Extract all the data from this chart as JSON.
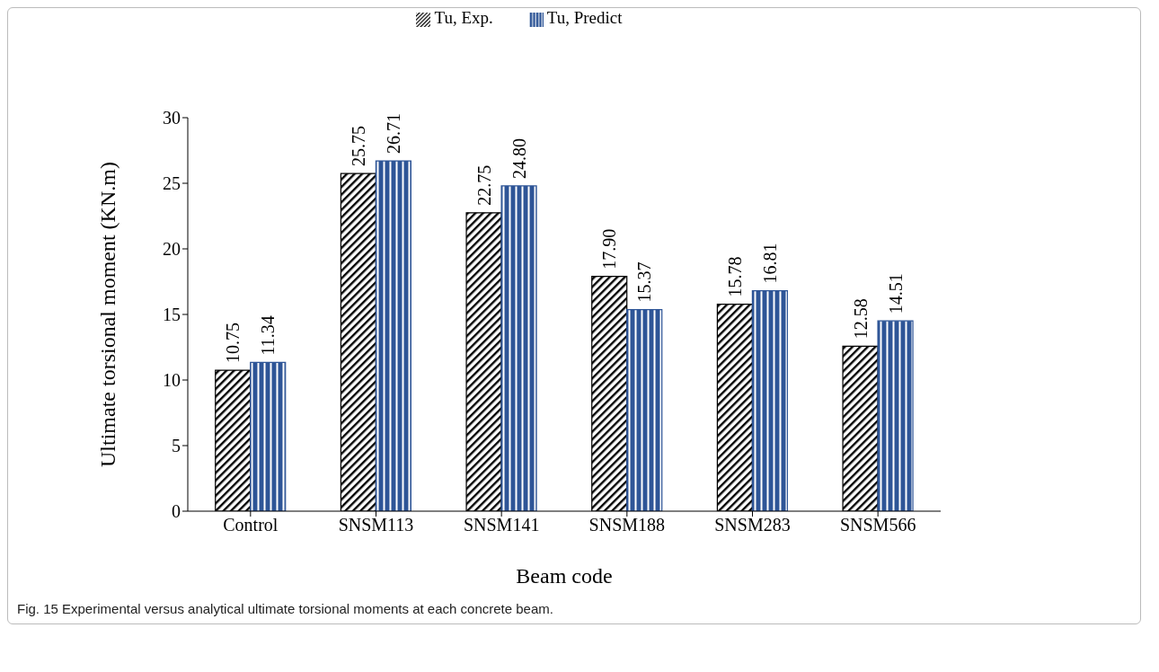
{
  "chart_data": {
    "type": "bar",
    "xlabel": "Beam code",
    "ylabel": "Ultimate torsional moment (KN.m)",
    "categories": [
      "Control",
      "SNSM113",
      "SNSM141",
      "SNSM188",
      "SNSM283",
      "SNSM566"
    ],
    "series": [
      {
        "name": "Tu, Exp.",
        "color": "#000000",
        "values": [
          10.75,
          25.75,
          22.75,
          17.9,
          15.78,
          12.58
        ],
        "value_labels": [
          "10.75",
          "25.75",
          "22.75",
          "17.90",
          "15.78",
          "12.58"
        ]
      },
      {
        "name": "Tu, Predict",
        "color": "#2e5597",
        "values": [
          11.34,
          26.71,
          24.8,
          15.37,
          16.81,
          14.51
        ],
        "value_labels": [
          "11.34",
          "26.71",
          "24.80",
          "15.37",
          "16.81",
          "14.51"
        ]
      }
    ],
    "ylim": [
      0,
      30
    ],
    "yticks": [
      0,
      5,
      10,
      15,
      20,
      25,
      30
    ],
    "legend": "top",
    "annotations": [
      "Fig. 15 Experimental versus analytical ultimate torsional moments at each concrete beam."
    ]
  }
}
